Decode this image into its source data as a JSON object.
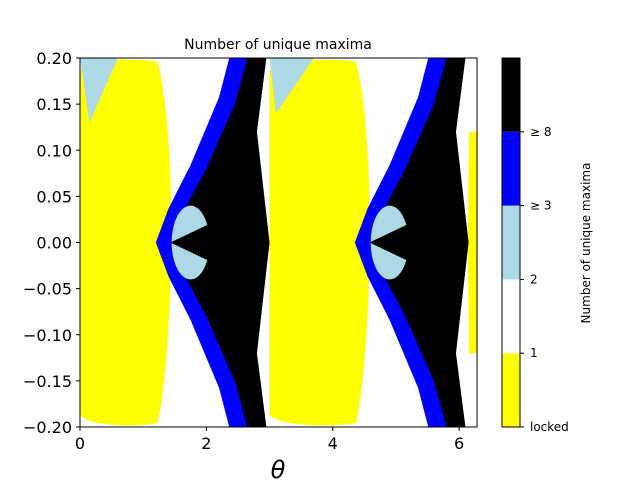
{
  "chart_data": {
    "type": "heatmap",
    "title": "Number of unique maxima",
    "xlabel": "θ",
    "ylabel": "",
    "xlim": [
      0,
      6.283
    ],
    "ylim": [
      -0.2,
      0.2
    ],
    "x_ticks": [
      {
        "value": 0,
        "label": "0"
      },
      {
        "value": 2,
        "label": "2"
      },
      {
        "value": 4,
        "label": "4"
      },
      {
        "value": 6,
        "label": "6"
      }
    ],
    "y_ticks": [
      {
        "value": 0.2,
        "label": "0.20"
      },
      {
        "value": 0.15,
        "label": "0.15"
      },
      {
        "value": 0.1,
        "label": "0.10"
      },
      {
        "value": 0.05,
        "label": "0.05"
      },
      {
        "value": 0.0,
        "label": "0.00"
      },
      {
        "value": -0.05,
        "label": "−0.05"
      },
      {
        "value": -0.1,
        "label": "−0.10"
      },
      {
        "value": -0.15,
        "label": "−0.15"
      },
      {
        "value": -0.2,
        "label": "−0.20"
      }
    ],
    "colorbar": {
      "label": "Number of unique maxima",
      "classes": [
        {
          "name": "locked",
          "color": "#ffff00"
        },
        {
          "name": "1",
          "color": "#ffffff"
        },
        {
          "name": "2",
          "color": "#add8e6"
        },
        {
          "name": "≥ 3",
          "color": "#0000ff"
        },
        {
          "name": "≥ 8",
          "color": "#000000"
        }
      ],
      "tick_labels": [
        "locked",
        "1",
        "2",
        "≥ 3",
        "≥ 8"
      ]
    },
    "regions": [
      {
        "class": "locked",
        "theta_range": [
          0.0,
          1.42
        ],
        "description_value": "yellow lobe, full height"
      },
      {
        "class": "locked",
        "theta_range": [
          3.0,
          4.56
        ],
        "description_value": "yellow lobe, full height"
      },
      {
        "class": "locked",
        "theta_range": [
          6.14,
          6.283
        ],
        "description_value": "yellow edge"
      },
      {
        "class": "≥ 8",
        "theta_range": [
          1.45,
          3.0
        ],
        "description_value": "black arrow shape centered at 0"
      },
      {
        "class": "≥ 8",
        "theta_range": [
          4.6,
          6.14
        ],
        "description_value": "black arrow shape centered at 0"
      },
      {
        "class": "2",
        "theta_range": [
          1.45,
          1.9
        ],
        "description_value": "light-blue halo near 0"
      },
      {
        "class": "2",
        "theta_range": [
          4.6,
          5.05
        ],
        "description_value": "light-blue halo near 0"
      }
    ]
  }
}
